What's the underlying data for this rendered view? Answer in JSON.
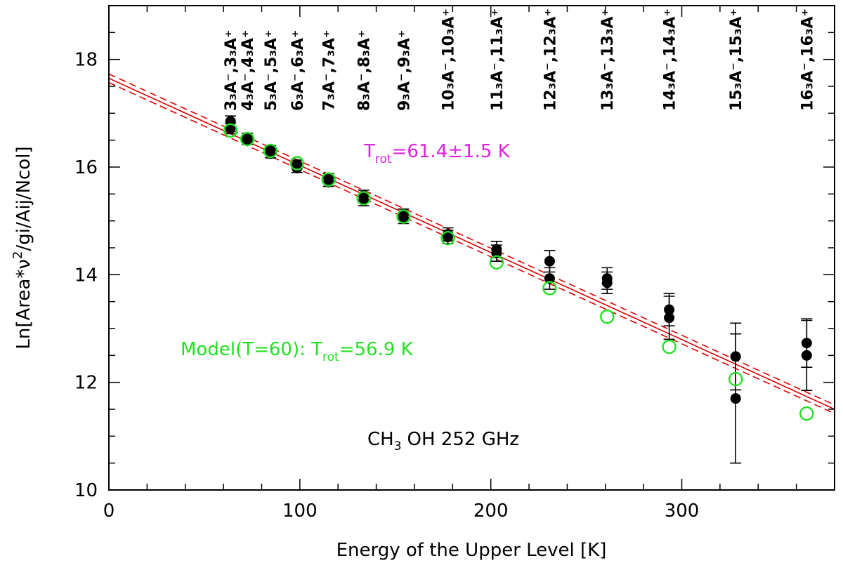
{
  "chart_data": {
    "type": "scatter",
    "title": "",
    "xlabel": "Energy of the Upper Level [K]",
    "ylabel": {
      "main": "Ln[Area*ν",
      "sup": "2",
      "rest": "/gi/Aij/Ncol]"
    },
    "xlim": [
      0,
      380
    ],
    "ylim": [
      10,
      19
    ],
    "x_ticks": [
      0,
      100,
      200,
      300
    ],
    "y_ticks": [
      10,
      12,
      14,
      16,
      18
    ],
    "x_minor_step": 20,
    "y_minor_step": 0.5,
    "grid": false,
    "colors": {
      "observed": "#000000",
      "model": "#22e022",
      "fit": "#e00000",
      "trot_label": "#e020e0",
      "model_label": "#22e022"
    },
    "annotations": {
      "trot": {
        "prefix": "T",
        "sub": "rot",
        "value": "=61.4±1.5 K"
      },
      "model": {
        "prefix": "Model(T=60): T",
        "sub": "rot",
        "value": "=56.9 K"
      },
      "species": {
        "a": "CH",
        "sub": "3",
        "b": "OH 252 GHz"
      }
    },
    "fit": {
      "y_at_0": 17.65,
      "y_at_380": 11.5,
      "band_offset": 0.08
    },
    "transitions": [
      {
        "x": 63.7,
        "label": "3₃A⁻,3₃A⁺"
      },
      {
        "x": 72.5,
        "label": "4₃A⁻,4₃A⁺"
      },
      {
        "x": 84.6,
        "label": "5₃A⁻,5₃A⁺"
      },
      {
        "x": 98.5,
        "label": "6₃A⁻,6₃A⁺"
      },
      {
        "x": 115.0,
        "label": "7₃A⁻,7₃A⁺"
      },
      {
        "x": 133.4,
        "label": "8₃A⁻,8₃A⁺"
      },
      {
        "x": 154.3,
        "label": "9₃A⁻,9₃A⁺"
      },
      {
        "x": 177.5,
        "label": "10₃A⁻,10₃A⁺"
      },
      {
        "x": 203.0,
        "label": "11₃A⁻,11₃A⁺"
      },
      {
        "x": 230.8,
        "label": "12₃A⁻,12₃A⁺"
      },
      {
        "x": 260.9,
        "label": "13₃A⁻,13₃A⁺"
      },
      {
        "x": 293.4,
        "label": "14₃A⁻,14₃A⁺"
      },
      {
        "x": 328.2,
        "label": "15₃A⁻,15₃A⁺"
      },
      {
        "x": 365.4,
        "label": "16₃A⁻,16₃A⁺"
      }
    ],
    "series": [
      {
        "name": "",
        "kind": "observed",
        "points": [
          {
            "x": 63.7,
            "y": 16.85,
            "err": 0.1
          },
          {
            "x": 63.7,
            "y": 16.72,
            "err": 0.1
          },
          {
            "x": 72.5,
            "y": 16.55,
            "err": 0.08
          },
          {
            "x": 72.5,
            "y": 16.5,
            "err": 0.08
          },
          {
            "x": 84.6,
            "y": 16.32,
            "err": 0.08
          },
          {
            "x": 84.6,
            "y": 16.25,
            "err": 0.08
          },
          {
            "x": 98.5,
            "y": 16.05,
            "err": 0.08
          },
          {
            "x": 98.5,
            "y": 15.98,
            "err": 0.08
          },
          {
            "x": 115.0,
            "y": 15.8,
            "err": 0.08
          },
          {
            "x": 115.0,
            "y": 15.72,
            "err": 0.08
          },
          {
            "x": 133.4,
            "y": 15.47,
            "err": 0.1
          },
          {
            "x": 133.4,
            "y": 15.38,
            "err": 0.1
          },
          {
            "x": 154.3,
            "y": 15.12,
            "err": 0.1
          },
          {
            "x": 154.3,
            "y": 15.05,
            "err": 0.1
          },
          {
            "x": 177.5,
            "y": 14.75,
            "err": 0.12
          },
          {
            "x": 177.5,
            "y": 14.7,
            "err": 0.12
          },
          {
            "x": 203.0,
            "y": 14.47,
            "err": 0.15
          },
          {
            "x": 203.0,
            "y": 14.4,
            "err": 0.15
          },
          {
            "x": 230.8,
            "y": 14.25,
            "err": 0.2
          },
          {
            "x": 230.8,
            "y": 13.93,
            "err": 0.2
          },
          {
            "x": 260.9,
            "y": 13.93,
            "err": 0.2
          },
          {
            "x": 260.9,
            "y": 13.85,
            "err": 0.2
          },
          {
            "x": 293.4,
            "y": 13.35,
            "err": 0.3
          },
          {
            "x": 293.4,
            "y": 13.2,
            "err": 0.4
          },
          {
            "x": 328.2,
            "y": 12.48,
            "err": 0.62
          },
          {
            "x": 328.2,
            "y": 11.7,
            "err": 1.2
          },
          {
            "x": 365.4,
            "y": 12.73,
            "err": 0.45
          },
          {
            "x": 365.4,
            "y": 12.5,
            "err": 0.65
          }
        ]
      },
      {
        "name": "",
        "kind": "model",
        "points": [
          {
            "x": 63.7,
            "y": 16.68
          },
          {
            "x": 72.5,
            "y": 16.52
          },
          {
            "x": 84.6,
            "y": 16.3
          },
          {
            "x": 98.5,
            "y": 16.07
          },
          {
            "x": 115.0,
            "y": 15.77
          },
          {
            "x": 133.4,
            "y": 15.42
          },
          {
            "x": 154.3,
            "y": 15.08
          },
          {
            "x": 177.5,
            "y": 14.68
          },
          {
            "x": 203.0,
            "y": 14.23
          },
          {
            "x": 230.8,
            "y": 13.75
          },
          {
            "x": 260.9,
            "y": 13.22
          },
          {
            "x": 293.4,
            "y": 12.66
          },
          {
            "x": 328.2,
            "y": 12.06
          },
          {
            "x": 365.4,
            "y": 11.42
          }
        ]
      }
    ]
  }
}
